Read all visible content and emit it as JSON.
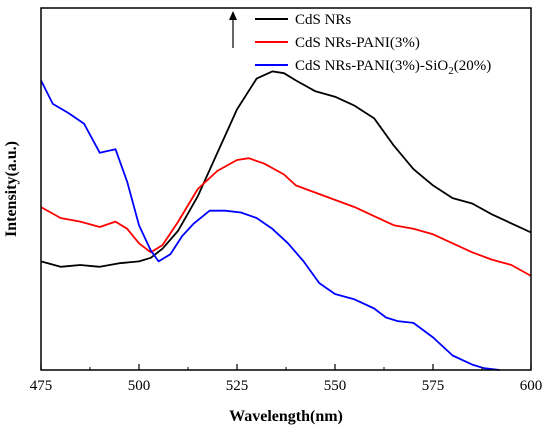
{
  "chart_data": {
    "type": "line",
    "xlabel": "Wavelength(nm)",
    "ylabel": "Intensity(a.u.)",
    "xlim": [
      475,
      600
    ],
    "ylim": [
      0,
      100
    ],
    "xticks": [
      "475",
      "500",
      "525",
      "550",
      "575",
      "600"
    ],
    "yticks_labeled": false,
    "grid": false,
    "legend_position": "top-right",
    "arrow_indicator": "up",
    "series": [
      {
        "name": "CdS NRs",
        "color": "#000000",
        "points": [
          [
            475,
            30
          ],
          [
            480,
            28.5
          ],
          [
            485,
            29
          ],
          [
            490,
            28.5
          ],
          [
            495,
            29.5
          ],
          [
            500,
            30
          ],
          [
            503,
            31
          ],
          [
            506,
            33.5
          ],
          [
            510,
            38.5
          ],
          [
            515,
            48
          ],
          [
            520,
            60
          ],
          [
            525,
            72
          ],
          [
            530,
            80.5
          ],
          [
            534,
            82.5
          ],
          [
            537,
            82
          ],
          [
            540,
            80
          ],
          [
            545,
            77
          ],
          [
            550,
            75.5
          ],
          [
            555,
            73
          ],
          [
            560,
            69.5
          ],
          [
            565,
            62
          ],
          [
            570,
            55.5
          ],
          [
            575,
            51
          ],
          [
            580,
            47.5
          ],
          [
            585,
            46
          ],
          [
            590,
            43
          ],
          [
            595,
            40.5
          ],
          [
            600,
            38
          ]
        ]
      },
      {
        "name": "CdS NRs-PANI(3%)",
        "color": "#ff0000",
        "points": [
          [
            475,
            45
          ],
          [
            480,
            42
          ],
          [
            485,
            41
          ],
          [
            490,
            39.5
          ],
          [
            494,
            41
          ],
          [
            497,
            39
          ],
          [
            500,
            35
          ],
          [
            503,
            32.5
          ],
          [
            506,
            34.5
          ],
          [
            510,
            41
          ],
          [
            515,
            50
          ],
          [
            520,
            55
          ],
          [
            525,
            58
          ],
          [
            528,
            58.5
          ],
          [
            532,
            57
          ],
          [
            537,
            54
          ],
          [
            540,
            51
          ],
          [
            545,
            49
          ],
          [
            550,
            47
          ],
          [
            555,
            45
          ],
          [
            560,
            42.5
          ],
          [
            565,
            40
          ],
          [
            570,
            39
          ],
          [
            575,
            37.5
          ],
          [
            580,
            35
          ],
          [
            585,
            32.5
          ],
          [
            590,
            30.5
          ],
          [
            595,
            29
          ],
          [
            600,
            26
          ]
        ]
      },
      {
        "name": "CdS NRs-PANI(3%)-SiO2(20%)",
        "legend_label_main": "CdS NRs-PANI(3%)-SiO",
        "legend_label_sub": "2",
        "legend_label_end": "(20%)",
        "color": "#0000ff",
        "points": [
          [
            475,
            80
          ],
          [
            478,
            73.5
          ],
          [
            482,
            71
          ],
          [
            486,
            68
          ],
          [
            490,
            60
          ],
          [
            494,
            61
          ],
          [
            497,
            52
          ],
          [
            500,
            40
          ],
          [
            503,
            33
          ],
          [
            505,
            30
          ],
          [
            508,
            32
          ],
          [
            511,
            37
          ],
          [
            514,
            40.5
          ],
          [
            518,
            44
          ],
          [
            522,
            44
          ],
          [
            526,
            43.5
          ],
          [
            530,
            42
          ],
          [
            534,
            39
          ],
          [
            538,
            35
          ],
          [
            542,
            30
          ],
          [
            546,
            24
          ],
          [
            550,
            21
          ],
          [
            555,
            19.5
          ],
          [
            560,
            17
          ],
          [
            563,
            14.5
          ],
          [
            566,
            13.5
          ],
          [
            570,
            13
          ],
          [
            575,
            9
          ],
          [
            580,
            4
          ],
          [
            585,
            1.5
          ],
          [
            588,
            0.5
          ],
          [
            592,
            0
          ]
        ]
      }
    ]
  }
}
